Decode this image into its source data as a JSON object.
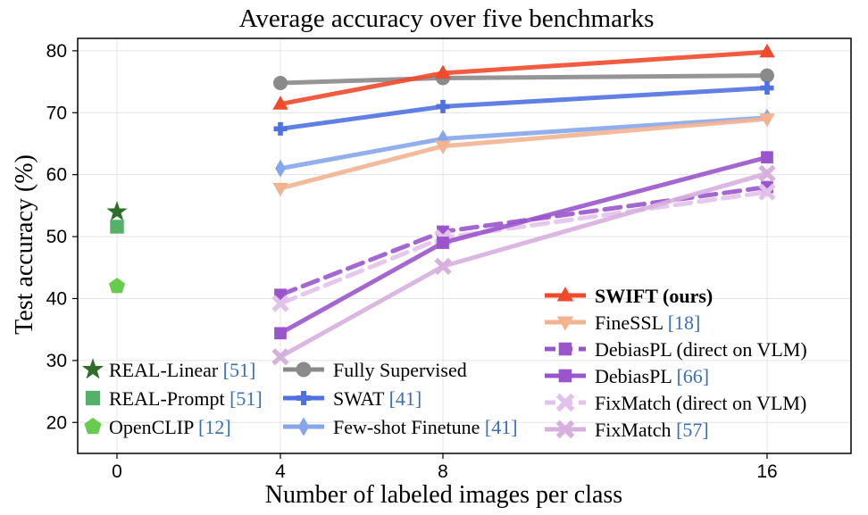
{
  "chart_data": {
    "type": "line",
    "title": "Average accuracy over five benchmarks",
    "xlabel": "Number of labeled images per class",
    "ylabel": "Test accuracy (%)",
    "x_categories": [
      "0",
      "4",
      "8",
      "16"
    ],
    "y_ticks": [
      20,
      30,
      40,
      50,
      60,
      70,
      80
    ],
    "ylim": [
      15,
      82
    ],
    "grid": true,
    "series": [
      {
        "name": "Fully Supervised",
        "ref": "",
        "bold": false,
        "color": "#8a8a8a",
        "marker": "circle",
        "dashed": false,
        "x": [
          "4",
          "8",
          "16"
        ],
        "values": [
          74.8,
          75.6,
          76.0
        ],
        "legend_group": "left"
      },
      {
        "name": "SWAT",
        "ref": "[41]",
        "bold": false,
        "color": "#4f72e0",
        "marker": "plus",
        "dashed": false,
        "x": [
          "4",
          "8",
          "16"
        ],
        "values": [
          67.4,
          71.0,
          74.0
        ],
        "legend_group": "left"
      },
      {
        "name": "Few-shot Finetune",
        "ref": "[41]",
        "bold": false,
        "color": "#85a6eb",
        "marker": "diamond",
        "dashed": false,
        "x": [
          "4",
          "8",
          "16"
        ],
        "values": [
          61.0,
          65.8,
          69.2
        ],
        "legend_group": "left"
      },
      {
        "name": "FineSSL",
        "ref": "[18]",
        "bold": false,
        "color": "#f2b391",
        "marker": "triangle-down",
        "dashed": false,
        "x": [
          "4",
          "8",
          "16"
        ],
        "values": [
          57.8,
          64.6,
          69.0
        ],
        "legend_group": "right"
      },
      {
        "name": "DebiasPL (direct on VLM)",
        "ref": "",
        "bold": false,
        "color": "#9a55cc",
        "marker": "square",
        "dashed": true,
        "x": [
          "4",
          "8",
          "16"
        ],
        "values": [
          40.6,
          50.8,
          58.0
        ],
        "legend_group": "right"
      },
      {
        "name": "FixMatch (direct on VLM)",
        "ref": "",
        "bold": false,
        "color": "#e2c2ea",
        "marker": "x",
        "dashed": true,
        "x": [
          "4",
          "8",
          "16"
        ],
        "values": [
          39.2,
          49.8,
          57.2
        ],
        "legend_group": "right"
      },
      {
        "name": "DebiasPL",
        "ref": "[66]",
        "bold": false,
        "color": "#9a55cc",
        "marker": "square",
        "dashed": false,
        "x": [
          "4",
          "8",
          "16"
        ],
        "values": [
          34.4,
          49.0,
          62.8
        ],
        "legend_group": "right"
      },
      {
        "name": "FixMatch",
        "ref": "[57]",
        "bold": false,
        "color": "#d7b0de",
        "marker": "x",
        "dashed": false,
        "x": [
          "4",
          "8",
          "16"
        ],
        "values": [
          30.6,
          45.2,
          60.2
        ],
        "legend_group": "right"
      },
      {
        "name": "SWIFT (ours)",
        "ref": "",
        "bold": true,
        "color": "#ef4a2c",
        "marker": "triangle-up",
        "dashed": false,
        "x": [
          "4",
          "8",
          "16"
        ],
        "values": [
          71.4,
          76.4,
          79.8
        ],
        "legend_group": "right"
      }
    ],
    "zero_shot_points": [
      {
        "name": "REAL-Linear",
        "ref": "[51]",
        "color": "#2e6e2a",
        "marker": "star",
        "x": "0",
        "value": 54.0
      },
      {
        "name": "REAL-Prompt",
        "ref": "[51]",
        "color": "#55b06a",
        "marker": "square",
        "x": "0",
        "value": 51.6
      },
      {
        "name": "OpenCLIP",
        "ref": "[12]",
        "color": "#66cc4e",
        "marker": "pentagon",
        "x": "0",
        "value": 42.0
      }
    ],
    "legend_left": {
      "col1": [
        "REAL-Linear",
        "REAL-Prompt",
        "OpenCLIP"
      ],
      "col2": [
        "Fully Supervised",
        "SWAT",
        "Few-shot Finetune"
      ]
    },
    "legend_right": [
      "SWIFT (ours)",
      "FineSSL",
      "DebiasPL (direct on VLM)",
      "DebiasPL",
      "FixMatch (direct on VLM)",
      "FixMatch"
    ],
    "legend_placement": "lower-left and lower-right"
  }
}
